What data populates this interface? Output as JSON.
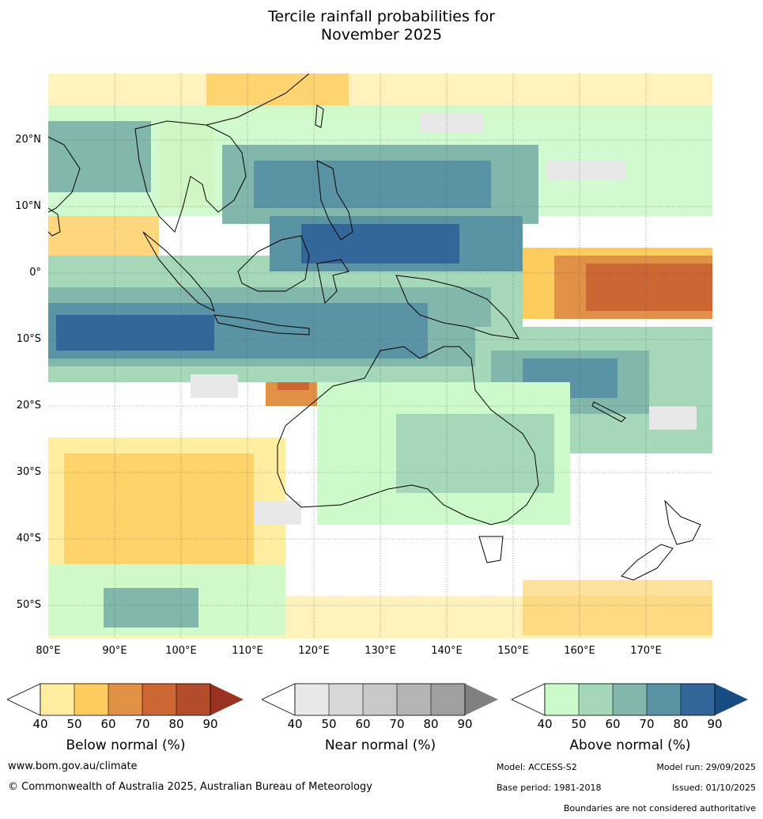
{
  "title_line1": "Tercile rainfall probabilities for",
  "title_line2": "November 2025",
  "map": {
    "lat_labels": [
      "20°N",
      "10°N",
      "0°",
      "10°S",
      "20°S",
      "30°S",
      "40°S",
      "50°S"
    ],
    "lon_labels": [
      "80°E",
      "90°E",
      "100°E",
      "110°E",
      "120°E",
      "130°E",
      "140°E",
      "150°E",
      "160°E",
      "170°E"
    ],
    "lon_range": [
      80,
      180
    ],
    "lat_range": [
      -55,
      30
    ]
  },
  "colorbars": [
    {
      "title": "Below normal (%)",
      "ticks": [
        "40",
        "50",
        "60",
        "70",
        "80",
        "90"
      ],
      "colors": [
        "#ffeda0",
        "#fecc5c",
        "#e09145",
        "#cc6633",
        "#b24c2a",
        "#99331f"
      ]
    },
    {
      "title": "Near normal (%)",
      "ticks": [
        "40",
        "50",
        "60",
        "70",
        "80",
        "90"
      ],
      "colors": [
        "#e8e8e8",
        "#d8d8d8",
        "#c8c8c8",
        "#b4b4b4",
        "#a0a0a0",
        "#808080"
      ]
    },
    {
      "title": "Above normal (%)",
      "ticks": [
        "40",
        "50",
        "60",
        "70",
        "80",
        "90"
      ],
      "colors": [
        "#ccfacb",
        "#a5d8b8",
        "#82b7ab",
        "#5a93a3",
        "#336699",
        "#184d84"
      ]
    }
  ],
  "footer": {
    "website": "www.bom.gov.au/climate",
    "copyright": "© Commonwealth of Australia 2025, Australian Bureau of Meteorology",
    "model": "Model: ACCESS-S2",
    "model_run": "Model run: 29/09/2025",
    "base_period": "Base period: 1981-2018",
    "issued": "Issued: 01/10/2025",
    "boundaries_note": "Boundaries are not considered authoritative"
  }
}
